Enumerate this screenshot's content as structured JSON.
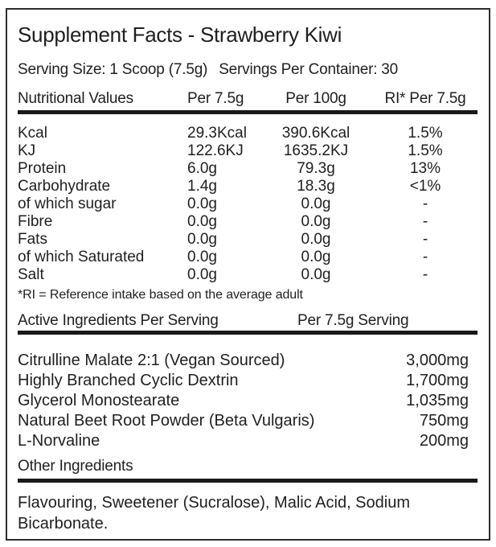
{
  "title": "Supplement Facts - Strawberry Kiwi",
  "serving": {
    "size_label": "Serving Size: 1",
    "size_value": "Scoop (7.5g)",
    "per_container_label": "Servings Per Container:",
    "per_container_value": "30"
  },
  "nutrition": {
    "columns": [
      "Nutritional Values",
      "Per 7.5g",
      "Per 100g",
      "RI* Per 7.5g"
    ],
    "rows": [
      {
        "name": "Kcal",
        "per7_5": "29.3Kcal",
        "per100": "390.6Kcal",
        "ri": "1.5%"
      },
      {
        "name": "KJ",
        "per7_5": "122.6KJ",
        "per100": "1635.2KJ",
        "ri": "1.5%"
      },
      {
        "name": "Protein",
        "per7_5": "6.0g",
        "per100": "79.3g",
        "ri": "13%"
      },
      {
        "name": "Carbohydrate",
        "per7_5": "1.4g",
        "per100": "18.3g",
        "ri": "<1%"
      },
      {
        "name": "of which sugar",
        "per7_5": "0.0g",
        "per100": "0.0g",
        "ri": "-"
      },
      {
        "name": "Fibre",
        "per7_5": "0.0g",
        "per100": "0.0g",
        "ri": "-"
      },
      {
        "name": "Fats",
        "per7_5": "0.0g",
        "per100": "0.0g",
        "ri": "-"
      },
      {
        "name": "of which Saturated",
        "per7_5": "0.0g",
        "per100": "0.0g",
        "ri": "-"
      },
      {
        "name": "Salt",
        "per7_5": "0.0g",
        "per100": "0.0g",
        "ri": "-"
      }
    ],
    "footnote": "*RI = Reference intake based on the average adult"
  },
  "active_ingredients": {
    "header_left": "Active Ingredients Per Serving",
    "header_right": "Per 7.5g Serving",
    "rows": [
      {
        "name": "Citrulline Malate 2:1 (Vegan Sourced)",
        "amount": "3,000mg"
      },
      {
        "name": "Highly Branched Cyclic Dextrin",
        "amount": "1,700mg"
      },
      {
        "name": "Glycerol Monostearate",
        "amount": "1,035mg"
      },
      {
        "name": "Natural Beet Root Powder (Beta Vulgaris)",
        "amount": "750mg"
      },
      {
        "name": "L-Norvaline",
        "amount": "200mg"
      }
    ]
  },
  "other_ingredients": {
    "heading": "Other Ingredients",
    "text": "Flavouring, Sweetener (Sucralose), Malic Acid, Sodium Bicarbonate."
  },
  "colors": {
    "text": "#1f1f1f",
    "rule": "#191919",
    "border": "#2e2e2e",
    "background": "#ffffff"
  }
}
